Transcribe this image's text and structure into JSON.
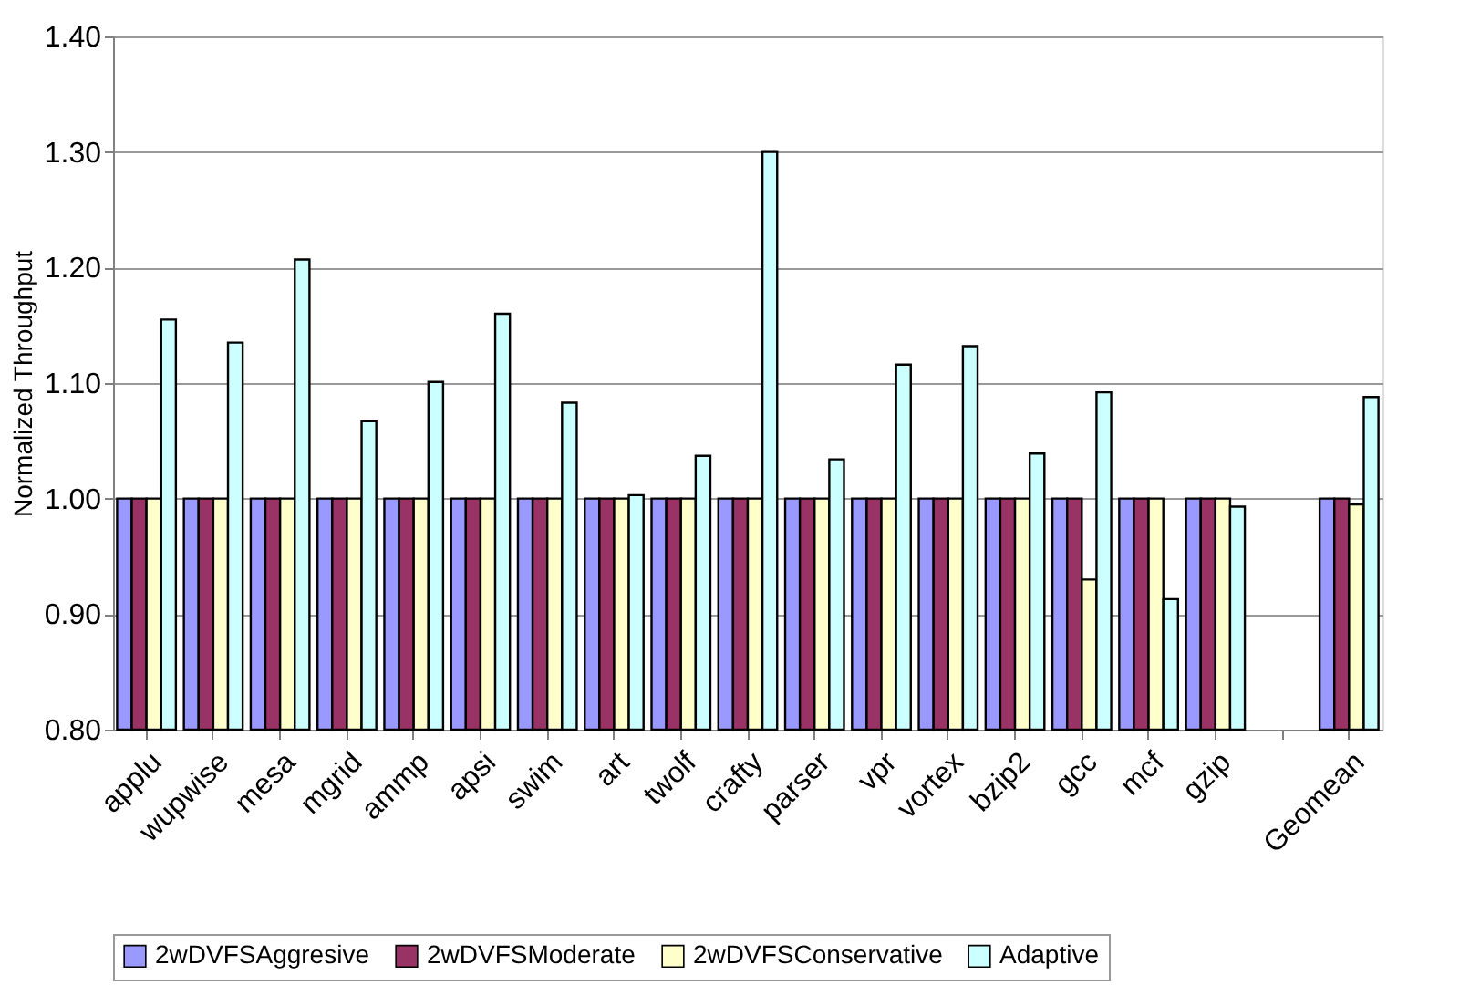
{
  "chart_data": {
    "type": "bar",
    "ylabel": "Normalized Throughput",
    "categories": [
      "applu",
      "wupwise",
      "mesa",
      "mgrid",
      "ammp",
      "apsi",
      "swim",
      "art",
      "twolf",
      "crafty",
      "parser",
      "vpr",
      "vortex",
      "bzip2",
      "gcc",
      "mcf",
      "gzip",
      null,
      "Geomean"
    ],
    "series": [
      {
        "name": "2wDVFSAggresive",
        "color": "#9999ff",
        "values": [
          1.0,
          1.0,
          1.0,
          1.0,
          1.0,
          1.0,
          1.0,
          1.0,
          1.0,
          1.0,
          1.0,
          1.0,
          1.0,
          1.0,
          1.0,
          1.0,
          1.0,
          null,
          1.0
        ]
      },
      {
        "name": "2wDVFSModerate",
        "color": "#993366",
        "values": [
          1.0,
          1.0,
          1.0,
          1.0,
          1.0,
          1.0,
          1.0,
          1.0,
          1.0,
          1.0,
          1.0,
          1.0,
          1.0,
          1.0,
          1.0,
          1.0,
          1.0,
          null,
          1.0
        ]
      },
      {
        "name": "2wDVFSConservative",
        "color": "#ffffcc",
        "values": [
          1.0,
          1.0,
          1.0,
          1.0,
          1.0,
          1.0,
          1.0,
          1.0,
          1.0,
          1.0,
          1.0,
          1.0,
          1.0,
          1.0,
          0.93,
          1.0,
          1.0,
          null,
          0.995
        ]
      },
      {
        "name": "Adaptive",
        "color": "#ccffff",
        "values": [
          1.155,
          1.135,
          1.207,
          1.067,
          1.101,
          1.16,
          1.083,
          1.003,
          1.037,
          1.3,
          1.034,
          1.116,
          1.132,
          1.039,
          1.092,
          0.913,
          0.993,
          null,
          1.088
        ]
      }
    ],
    "ylim": [
      0.8,
      1.4
    ],
    "yticks": [
      {
        "value": 0.8,
        "label": "0.80"
      },
      {
        "value": 0.9,
        "label": "0.90"
      },
      {
        "value": 1.0,
        "label": "1.00"
      },
      {
        "value": 1.1,
        "label": "1.10"
      },
      {
        "value": 1.2,
        "label": "1.20"
      },
      {
        "value": 1.3,
        "label": "1.30"
      },
      {
        "value": 1.4,
        "label": "1.40"
      }
    ],
    "grid": "y",
    "legend": "bottom"
  }
}
